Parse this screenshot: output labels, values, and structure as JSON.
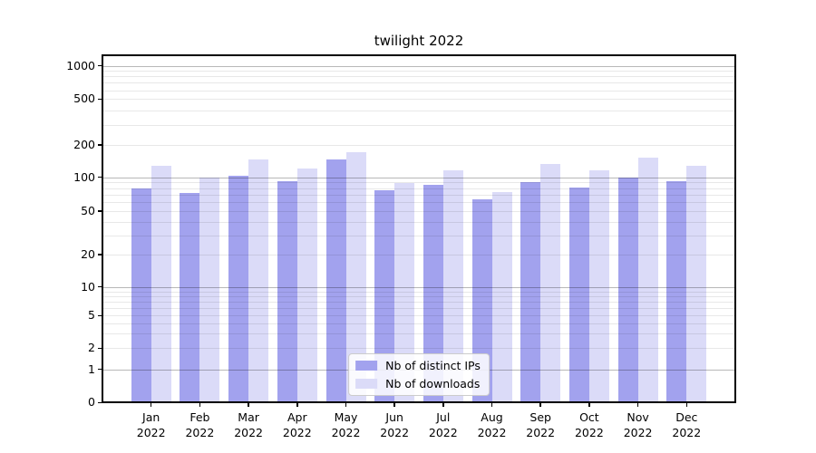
{
  "chart_data": {
    "type": "bar",
    "title": "twilight 2022",
    "categories": [
      "Jan",
      "Feb",
      "Mar",
      "Apr",
      "May",
      "Jun",
      "Jul",
      "Aug",
      "Sep",
      "Oct",
      "Nov",
      "Dec"
    ],
    "category_year": "2022",
    "series": [
      {
        "name": "Nb of distinct IPs",
        "color": "#a2a2ee",
        "values": [
          79,
          72,
          103,
          92,
          147,
          77,
          85,
          64,
          91,
          81,
          100,
          92
        ]
      },
      {
        "name": "Nb of downloads",
        "color": "#dbdbf8",
        "values": [
          127,
          100,
          147,
          121,
          171,
          89,
          116,
          74,
          133,
          116,
          153,
          127
        ]
      }
    ],
    "xlabel": "",
    "ylabel": "",
    "yscale": "symlog",
    "yticks": [
      0,
      1,
      2,
      5,
      10,
      20,
      50,
      100,
      200,
      500,
      1000
    ],
    "ylim": [
      0,
      1250
    ],
    "grid": true,
    "legend_position": "lower center",
    "colors": {
      "background": "#ffffff",
      "axis": "#000000",
      "major_grid": "#b8b8b8",
      "minor_grid": "#e9e9e9",
      "text": "#000000"
    }
  }
}
